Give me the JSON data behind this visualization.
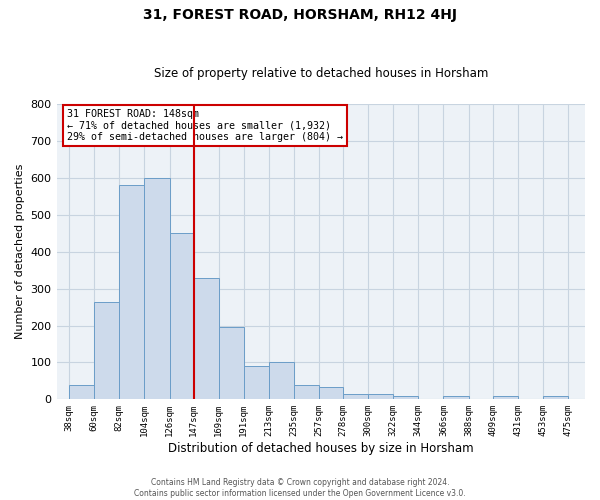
{
  "title": "31, FOREST ROAD, HORSHAM, RH12 4HJ",
  "subtitle": "Size of property relative to detached houses in Horsham",
  "xlabel": "Distribution of detached houses by size in Horsham",
  "ylabel": "Number of detached properties",
  "bar_left_edges": [
    38,
    60,
    82,
    104,
    126,
    147,
    169,
    191,
    213,
    235,
    257,
    278,
    300,
    322,
    344,
    366,
    388,
    409,
    431,
    453
  ],
  "bar_widths": [
    22,
    22,
    22,
    22,
    21,
    22,
    22,
    22,
    22,
    22,
    21,
    22,
    22,
    22,
    22,
    22,
    21,
    22,
    22,
    22
  ],
  "bar_heights": [
    38,
    265,
    580,
    600,
    450,
    330,
    195,
    90,
    100,
    38,
    33,
    15,
    15,
    10,
    0,
    8,
    0,
    8,
    0,
    8
  ],
  "bar_color": "#cddaeb",
  "bar_edge_color": "#6b9dc8",
  "x_tick_labels": [
    "38sqm",
    "60sqm",
    "82sqm",
    "104sqm",
    "126sqm",
    "147sqm",
    "169sqm",
    "191sqm",
    "213sqm",
    "235sqm",
    "257sqm",
    "278sqm",
    "300sqm",
    "322sqm",
    "344sqm",
    "366sqm",
    "388sqm",
    "409sqm",
    "431sqm",
    "453sqm",
    "475sqm"
  ],
  "x_tick_positions": [
    38,
    60,
    82,
    104,
    126,
    147,
    169,
    191,
    213,
    235,
    257,
    278,
    300,
    322,
    344,
    366,
    388,
    409,
    431,
    453,
    475
  ],
  "ylim": [
    0,
    800
  ],
  "xlim": [
    27,
    490
  ],
  "vline_x": 147,
  "vline_color": "#cc0000",
  "annotation_title": "31 FOREST ROAD: 148sqm",
  "annotation_line1": "← 71% of detached houses are smaller (1,932)",
  "annotation_line2": "29% of semi-detached houses are larger (804) →",
  "annotation_box_color": "#cc0000",
  "footer_line1": "Contains HM Land Registry data © Crown copyright and database right 2024.",
  "footer_line2": "Contains public sector information licensed under the Open Government Licence v3.0.",
  "grid_color": "#c8d4e0",
  "background_color": "#edf2f7"
}
